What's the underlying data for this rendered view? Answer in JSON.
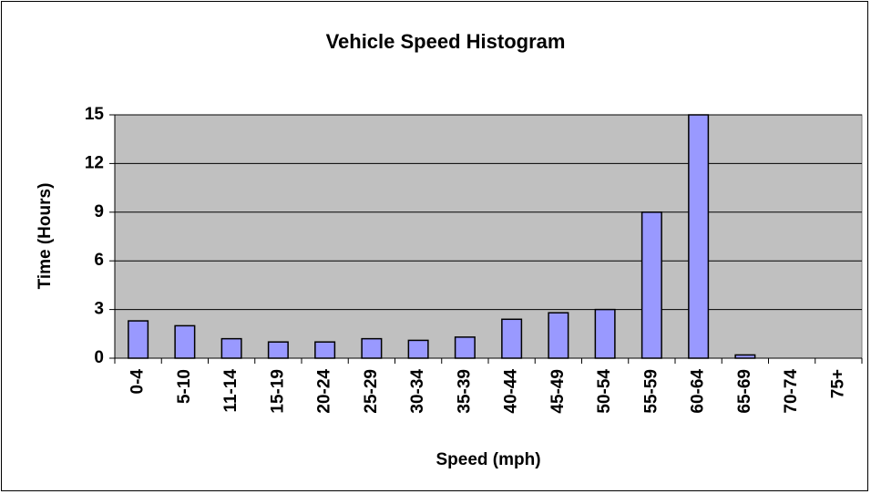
{
  "chart_data": {
    "type": "bar",
    "title": "Vehicle Speed Histogram",
    "x_label": "Speed (mph)",
    "y_label": "Time (Hours)",
    "categories": [
      "0-4",
      "5-10",
      "11-14",
      "15-19",
      "20-24",
      "25-29",
      "30-34",
      "35-39",
      "40-44",
      "45-49",
      "50-54",
      "55-59",
      "60-64",
      "65-69",
      "70-74",
      "75+"
    ],
    "values": [
      2.3,
      2.0,
      1.2,
      1.0,
      1.0,
      1.2,
      1.1,
      1.3,
      2.4,
      2.8,
      3.0,
      9,
      15,
      0.2,
      0,
      0
    ],
    "color": "#9999ff",
    "ylim": [
      0,
      15
    ],
    "yticks": [
      0,
      3,
      6,
      9,
      12,
      15
    ],
    "grid": true
  }
}
